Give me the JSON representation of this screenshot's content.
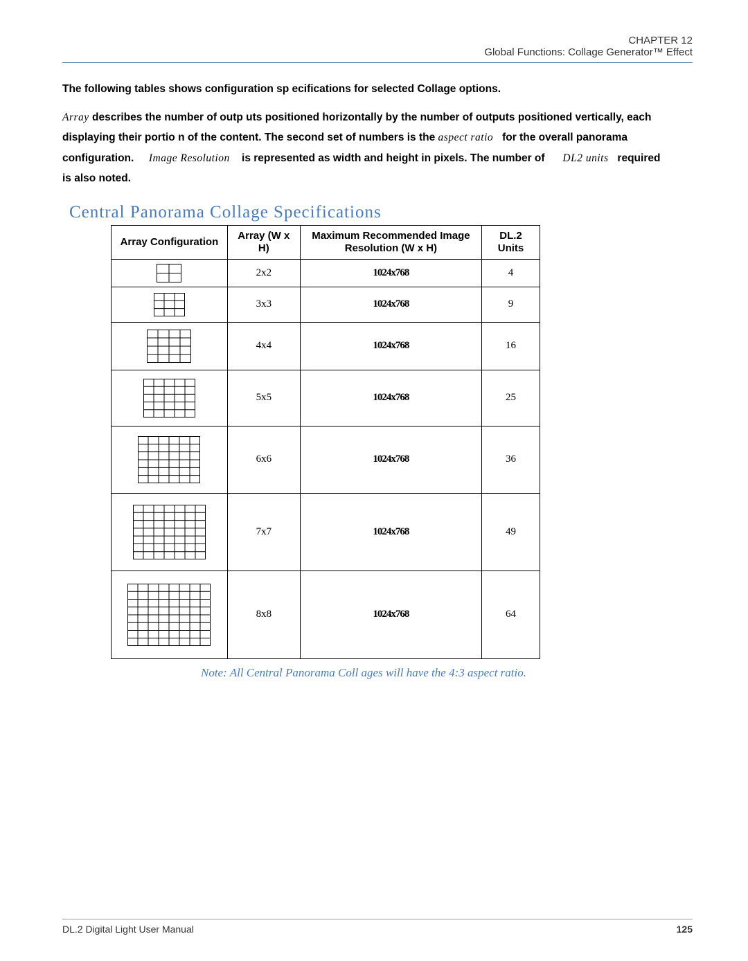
{
  "header": {
    "chapter": "CHAPTER 12",
    "section": "Global Functions: Collage Generator™ Effect"
  },
  "intro": {
    "lead": "The following tables shows configuration sp    ecifications for selected Collage options.",
    "para": "describes the number of outp    uts positioned horizontally   by the number of outputs positioned vertically, each displaying their portio    n of the content. The second set of numbers is the ",
    "term_array": "Array",
    "term_aspect": "aspect ratio",
    "para2": "for the overall panorama configuration.",
    "term_imgres": "Image Resolution",
    "para3": "is represented as width and height in pixels. The number of",
    "term_dl2": "DL2 units",
    "para4": "required is also noted."
  },
  "section_title": "Central Panorama Collage Specifications",
  "table": {
    "headers": {
      "config": "Array Configuration",
      "array": "Array (W x H)",
      "res": "Maximum Recommended Image Resolution (W x H)",
      "units": "DL.2 Units"
    },
    "rows": [
      {
        "n": 2,
        "array": "2x2",
        "res": "1024x768",
        "units": "4",
        "cell": 18
      },
      {
        "n": 3,
        "array": "3x3",
        "res": "1024x768",
        "units": "9",
        "cell": 15
      },
      {
        "n": 4,
        "array": "4x4",
        "res": "1024x768",
        "units": "16",
        "cell": 16
      },
      {
        "n": 5,
        "array": "5x5",
        "res": "1024x768",
        "units": "25",
        "cell": 15
      },
      {
        "n": 6,
        "array": "6x6",
        "res": "1024x768",
        "units": "36",
        "cell": 15
      },
      {
        "n": 7,
        "array": "7x7",
        "res": "1024x768",
        "units": "49",
        "cell": 15
      },
      {
        "n": 8,
        "array": "8x8",
        "res": "1024x768",
        "units": "64",
        "cell": 15
      }
    ]
  },
  "note": "Note:   All Central Panorama Coll    ages will have the 4:3 aspect ratio.",
  "footer": {
    "left": "DL.2 Digital Light User Manual",
    "page": "125"
  }
}
